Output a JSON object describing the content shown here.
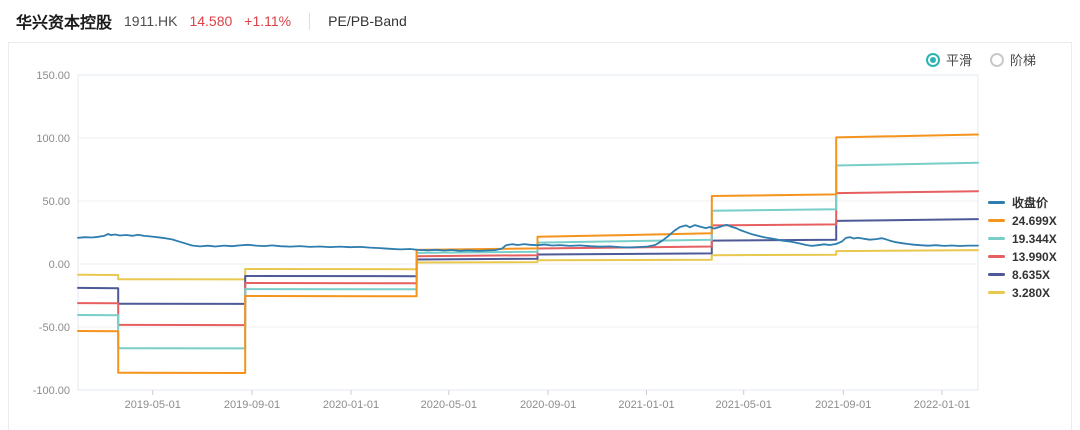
{
  "header": {
    "title": "华兴资本控股",
    "ticker": "1911.HK",
    "price": "14.580",
    "change": "+1.11%",
    "tab": "PE/PB-Band",
    "price_color": "#dd4046"
  },
  "controls": {
    "options": [
      {
        "label": "平滑",
        "selected": true
      },
      {
        "label": "阶梯",
        "selected": false
      }
    ],
    "accent_color": "#2bb5b1"
  },
  "chart_data": {
    "type": "line",
    "xlabel": "",
    "ylabel": "",
    "xlim": [
      2019.076,
      2022.122
    ],
    "ylim": [
      -100,
      150
    ],
    "grid": true,
    "legend_position": "right",
    "y_ticks": [
      {
        "v": 150,
        "label": "150.00"
      },
      {
        "v": 100,
        "label": "100.00"
      },
      {
        "v": 50,
        "label": "50.00"
      },
      {
        "v": 0,
        "label": "0.00"
      },
      {
        "v": -50,
        "label": "-50.00"
      },
      {
        "v": -100,
        "label": "-100.00"
      }
    ],
    "x_ticks": [
      {
        "t": 2019.329,
        "label": "2019-05-01"
      },
      {
        "t": 2019.665,
        "label": "2019-09-01"
      },
      {
        "t": 2020.0,
        "label": "2020-01-01"
      },
      {
        "t": 2020.331,
        "label": "2020-05-01"
      },
      {
        "t": 2020.667,
        "label": "2020-09-01"
      },
      {
        "t": 2021.0,
        "label": "2021-01-01"
      },
      {
        "t": 2021.329,
        "label": "2021-05-01"
      },
      {
        "t": 2021.666,
        "label": "2021-09-01"
      },
      {
        "t": 2022.0,
        "label": "2022-01-01"
      }
    ],
    "series": [
      {
        "name": "收盘价",
        "color": "#2e7daf",
        "width": 1.8,
        "points": [
          [
            2019.076,
            20.8
          ],
          [
            2019.1,
            21.3
          ],
          [
            2019.124,
            21.0
          ],
          [
            2019.144,
            21.6
          ],
          [
            2019.164,
            22.3
          ],
          [
            2019.178,
            23.8
          ],
          [
            2019.188,
            22.9
          ],
          [
            2019.201,
            23.4
          ],
          [
            2019.218,
            22.6
          ],
          [
            2019.239,
            23.0
          ],
          [
            2019.262,
            22.4
          ],
          [
            2019.279,
            23.2
          ],
          [
            2019.3,
            22.3
          ],
          [
            2019.32,
            21.9
          ],
          [
            2019.347,
            21.2
          ],
          [
            2019.371,
            20.5
          ],
          [
            2019.394,
            19.5
          ],
          [
            2019.421,
            17.6
          ],
          [
            2019.442,
            16.1
          ],
          [
            2019.462,
            14.7
          ],
          [
            2019.489,
            14.0
          ],
          [
            2019.516,
            14.5
          ],
          [
            2019.54,
            13.9
          ],
          [
            2019.57,
            14.6
          ],
          [
            2019.597,
            14.1
          ],
          [
            2019.624,
            14.8
          ],
          [
            2019.651,
            15.2
          ],
          [
            2019.678,
            14.6
          ],
          [
            2019.706,
            14.2
          ],
          [
            2019.733,
            14.8
          ],
          [
            2019.76,
            14.1
          ],
          [
            2019.794,
            13.8
          ],
          [
            2019.827,
            14.2
          ],
          [
            2019.861,
            13.6
          ],
          [
            2019.895,
            13.9
          ],
          [
            2019.929,
            13.4
          ],
          [
            2019.963,
            13.8
          ],
          [
            2019.997,
            13.3
          ],
          [
            2020.031,
            13.6
          ],
          [
            2020.064,
            13.0
          ],
          [
            2020.098,
            12.6
          ],
          [
            2020.132,
            12.1
          ],
          [
            2020.166,
            11.6
          ],
          [
            2020.2,
            11.9
          ],
          [
            2020.227,
            11.2
          ],
          [
            2020.261,
            10.9
          ],
          [
            2020.288,
            11.3
          ],
          [
            2020.315,
            10.7
          ],
          [
            2020.342,
            11.1
          ],
          [
            2020.369,
            10.5
          ],
          [
            2020.396,
            10.9
          ],
          [
            2020.43,
            10.4
          ],
          [
            2020.464,
            10.8
          ],
          [
            2020.487,
            11.0
          ],
          [
            2020.511,
            12.2
          ],
          [
            2020.525,
            14.9
          ],
          [
            2020.545,
            15.7
          ],
          [
            2020.565,
            15.1
          ],
          [
            2020.586,
            15.8
          ],
          [
            2020.606,
            15.2
          ],
          [
            2020.63,
            14.9
          ],
          [
            2020.657,
            15.4
          ],
          [
            2020.68,
            14.7
          ],
          [
            2020.707,
            15.0
          ],
          [
            2020.741,
            14.4
          ],
          [
            2020.775,
            14.8
          ],
          [
            2020.809,
            14.1
          ],
          [
            2020.843,
            13.7
          ],
          [
            2020.877,
            14.0
          ],
          [
            2020.91,
            13.4
          ],
          [
            2020.944,
            13.1
          ],
          [
            2020.978,
            13.5
          ],
          [
            2021.005,
            13.9
          ],
          [
            2021.029,
            15.1
          ],
          [
            2021.053,
            18.4
          ],
          [
            2021.073,
            22.1
          ],
          [
            2021.093,
            26.2
          ],
          [
            2021.113,
            29.4
          ],
          [
            2021.134,
            30.6
          ],
          [
            2021.147,
            29.1
          ],
          [
            2021.164,
            30.9
          ],
          [
            2021.181,
            29.7
          ],
          [
            2021.201,
            28.5
          ],
          [
            2021.215,
            29.4
          ],
          [
            2021.228,
            28.1
          ],
          [
            2021.242,
            29.0
          ],
          [
            2021.259,
            30.3
          ],
          [
            2021.272,
            31.0
          ],
          [
            2021.286,
            29.7
          ],
          [
            2021.303,
            28.5
          ],
          [
            2021.316,
            27.0
          ],
          [
            2021.337,
            25.2
          ],
          [
            2021.357,
            23.6
          ],
          [
            2021.377,
            22.4
          ],
          [
            2021.398,
            21.2
          ],
          [
            2021.418,
            20.4
          ],
          [
            2021.438,
            19.6
          ],
          [
            2021.459,
            18.6
          ],
          [
            2021.479,
            18.0
          ],
          [
            2021.499,
            17.2
          ],
          [
            2021.519,
            16.3
          ],
          [
            2021.54,
            15.1
          ],
          [
            2021.56,
            14.4
          ],
          [
            2021.58,
            14.9
          ],
          [
            2021.601,
            15.6
          ],
          [
            2021.621,
            15.1
          ],
          [
            2021.641,
            15.9
          ],
          [
            2021.662,
            17.9
          ],
          [
            2021.675,
            20.7
          ],
          [
            2021.689,
            21.3
          ],
          [
            2021.702,
            20.2
          ],
          [
            2021.716,
            20.9
          ],
          [
            2021.736,
            20.0
          ],
          [
            2021.756,
            19.3
          ],
          [
            2021.777,
            19.8
          ],
          [
            2021.797,
            20.5
          ],
          [
            2021.81,
            19.6
          ],
          [
            2021.824,
            18.5
          ],
          [
            2021.844,
            17.3
          ],
          [
            2021.865,
            16.5
          ],
          [
            2021.885,
            15.9
          ],
          [
            2021.905,
            15.3
          ],
          [
            2021.926,
            14.9
          ],
          [
            2021.953,
            14.5
          ],
          [
            2021.98,
            14.9
          ],
          [
            2022.007,
            14.4
          ],
          [
            2022.034,
            14.7
          ],
          [
            2022.061,
            14.3
          ],
          [
            2022.088,
            14.6
          ],
          [
            2022.122,
            14.6
          ]
        ]
      },
      {
        "name": "24.699X",
        "color": "#f5941d",
        "width": 2,
        "points": [
          [
            2019.076,
            -53.2
          ],
          [
            2019.212,
            -53.4
          ],
          [
            2019.212,
            -86.3
          ],
          [
            2019.642,
            -86.5
          ],
          [
            2019.642,
            -25.4
          ],
          [
            2020.222,
            -25.6
          ],
          [
            2020.222,
            11.2
          ],
          [
            2020.631,
            12.4
          ],
          [
            2020.631,
            21.6
          ],
          [
            2021.221,
            24.4
          ],
          [
            2021.221,
            54.0
          ],
          [
            2021.642,
            55.2
          ],
          [
            2021.642,
            100.5
          ],
          [
            2022.122,
            102.8
          ]
        ]
      },
      {
        "name": "19.344X",
        "color": "#79cec8",
        "width": 2,
        "points": [
          [
            2019.076,
            -40.5
          ],
          [
            2019.212,
            -40.7
          ],
          [
            2019.212,
            -66.8
          ],
          [
            2019.642,
            -67.0
          ],
          [
            2019.642,
            -19.9
          ],
          [
            2020.222,
            -20.1
          ],
          [
            2020.222,
            8.8
          ],
          [
            2020.631,
            9.8
          ],
          [
            2020.631,
            17.0
          ],
          [
            2021.221,
            19.2
          ],
          [
            2021.221,
            42.3
          ],
          [
            2021.642,
            43.4
          ],
          [
            2021.642,
            78.2
          ],
          [
            2022.122,
            80.3
          ]
        ]
      },
      {
        "name": "13.990X",
        "color": "#e65f61",
        "width": 2,
        "points": [
          [
            2019.076,
            -31.0
          ],
          [
            2019.212,
            -31.2
          ],
          [
            2019.212,
            -48.3
          ],
          [
            2019.642,
            -48.5
          ],
          [
            2019.642,
            -15.1
          ],
          [
            2020.222,
            -15.3
          ],
          [
            2020.222,
            6.2
          ],
          [
            2020.631,
            7.0
          ],
          [
            2020.631,
            12.3
          ],
          [
            2021.221,
            13.9
          ],
          [
            2021.221,
            30.6
          ],
          [
            2021.642,
            31.4
          ],
          [
            2021.642,
            56.3
          ],
          [
            2022.122,
            57.8
          ]
        ]
      },
      {
        "name": "8.635X",
        "color": "#4d5a97",
        "width": 2,
        "points": [
          [
            2019.076,
            -19.0
          ],
          [
            2019.212,
            -19.2
          ],
          [
            2019.212,
            -31.5
          ],
          [
            2019.642,
            -31.7
          ],
          [
            2019.642,
            -9.5
          ],
          [
            2020.222,
            -9.7
          ],
          [
            2020.222,
            3.6
          ],
          [
            2020.631,
            4.2
          ],
          [
            2020.631,
            7.5
          ],
          [
            2021.221,
            8.4
          ],
          [
            2021.221,
            18.6
          ],
          [
            2021.642,
            19.2
          ],
          [
            2021.642,
            34.2
          ],
          [
            2022.122,
            35.6
          ]
        ]
      },
      {
        "name": "3.280X",
        "color": "#e9c850",
        "width": 2,
        "points": [
          [
            2019.076,
            -8.6
          ],
          [
            2019.212,
            -8.7
          ],
          [
            2019.212,
            -12.1
          ],
          [
            2019.642,
            -12.2
          ],
          [
            2019.642,
            -4.0
          ],
          [
            2020.222,
            -4.1
          ],
          [
            2020.222,
            1.2
          ],
          [
            2020.631,
            1.5
          ],
          [
            2020.631,
            2.9
          ],
          [
            2021.221,
            3.3
          ],
          [
            2021.221,
            7.0
          ],
          [
            2021.642,
            7.3
          ],
          [
            2021.642,
            10.2
          ],
          [
            2022.122,
            11.0
          ]
        ]
      }
    ]
  }
}
